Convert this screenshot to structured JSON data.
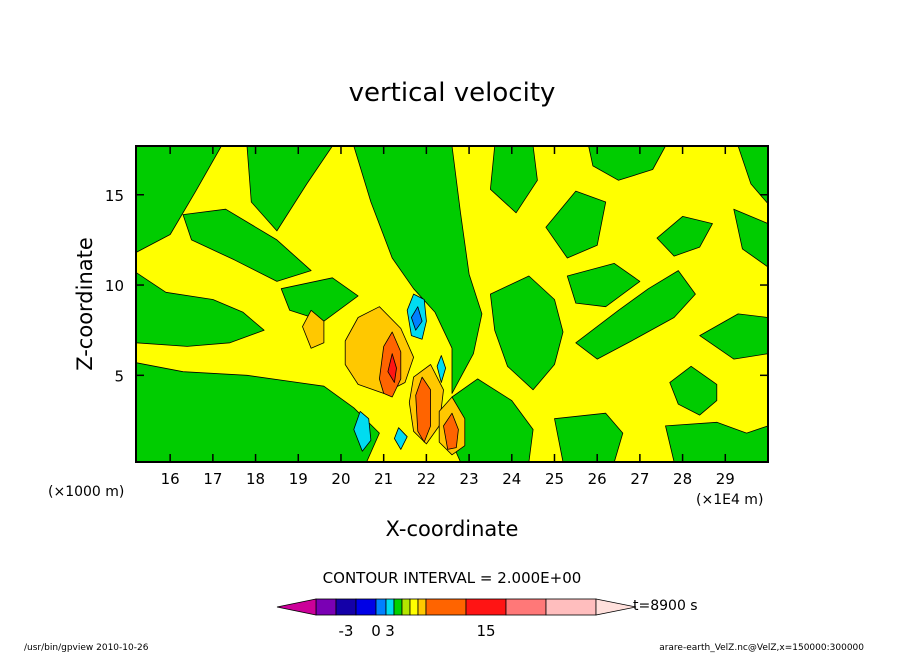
{
  "chart_data": {
    "type": "heatmap",
    "title": "vertical velocity",
    "xlabel": "X-coordinate",
    "ylabel": "Z-coordinate",
    "x_unit_left": "(×1000 m)",
    "x_unit_right": "(×1E4 m)",
    "xlim": [
      15.2,
      30.0
    ],
    "ylim": [
      0.2,
      17.7
    ],
    "x_ticks": [
      16,
      17,
      18,
      19,
      20,
      21,
      22,
      23,
      24,
      25,
      26,
      27,
      28,
      29
    ],
    "y_ticks": [
      5,
      10,
      15
    ],
    "contour_interval_label": "CONTOUR INTERVAL = 2.000E+00",
    "colorbar": {
      "labels": [
        {
          "value": "-3",
          "index": 1.5
        },
        {
          "value": "0",
          "index": 3
        },
        {
          "value": "3",
          "index": 4.5
        },
        {
          "value": "15",
          "index": 10.5
        }
      ],
      "colors": [
        "#cc0099",
        "#7a00b4",
        "#1400a8",
        "#0000e6",
        "#0080ff",
        "#00dcf0",
        "#00d200",
        "#b4e600",
        "#ffff00",
        "#ffc800",
        "#ff6400",
        "#ff1414",
        "#ff7878",
        "#ffbebe",
        "#ffe0dc"
      ],
      "time_label": "t=8900 s"
    },
    "background_regions": [
      {
        "color": "#ffff00",
        "kind": "rect",
        "x0": 15.2,
        "x1": 30.0,
        "y0": 0.2,
        "y1": 17.7
      }
    ],
    "regions": [
      {
        "color": "#00cc00",
        "points": [
          [
            15.2,
            17.7
          ],
          [
            17.2,
            17.7
          ],
          [
            16.6,
            15.2
          ],
          [
            16.0,
            12.8
          ],
          [
            15.2,
            11.8
          ]
        ]
      },
      {
        "color": "#00cc00",
        "points": [
          [
            17.8,
            17.7
          ],
          [
            19.8,
            17.7
          ],
          [
            19.2,
            15.6
          ],
          [
            18.5,
            13.0
          ],
          [
            17.9,
            14.6
          ]
        ]
      },
      {
        "color": "#00cc00",
        "points": [
          [
            20.3,
            17.7
          ],
          [
            22.6,
            17.7
          ],
          [
            22.8,
            14.0
          ],
          [
            23.0,
            10.6
          ],
          [
            23.3,
            8.4
          ],
          [
            23.1,
            6.2
          ],
          [
            22.6,
            4.0
          ],
          [
            22.6,
            6.5
          ],
          [
            22.2,
            8.5
          ],
          [
            21.7,
            9.8
          ],
          [
            21.2,
            11.5
          ],
          [
            20.7,
            14.6
          ]
        ]
      },
      {
        "color": "#00cc00",
        "points": [
          [
            23.6,
            17.7
          ],
          [
            24.5,
            17.7
          ],
          [
            24.6,
            15.8
          ],
          [
            24.1,
            14.0
          ],
          [
            23.5,
            15.3
          ]
        ]
      },
      {
        "color": "#00cc00",
        "points": [
          [
            25.8,
            17.7
          ],
          [
            27.6,
            17.7
          ],
          [
            27.3,
            16.4
          ],
          [
            26.5,
            15.8
          ],
          [
            25.9,
            16.6
          ]
        ]
      },
      {
        "color": "#00cc00",
        "points": [
          [
            29.3,
            17.7
          ],
          [
            30.0,
            17.7
          ],
          [
            30.0,
            14.5
          ],
          [
            29.6,
            15.6
          ]
        ]
      },
      {
        "color": "#00cc00",
        "points": [
          [
            15.2,
            10.7
          ],
          [
            15.9,
            9.6
          ],
          [
            17.0,
            9.2
          ],
          [
            17.7,
            8.5
          ],
          [
            18.2,
            7.5
          ],
          [
            17.4,
            6.8
          ],
          [
            16.4,
            6.6
          ],
          [
            15.2,
            6.8
          ]
        ]
      },
      {
        "color": "#00cc00",
        "points": [
          [
            16.3,
            13.9
          ],
          [
            17.3,
            14.2
          ],
          [
            18.5,
            12.5
          ],
          [
            19.3,
            10.8
          ],
          [
            18.5,
            10.2
          ],
          [
            17.5,
            11.4
          ],
          [
            16.5,
            12.5
          ]
        ]
      },
      {
        "color": "#00cc00",
        "points": [
          [
            18.6,
            9.8
          ],
          [
            19.8,
            10.4
          ],
          [
            20.4,
            9.4
          ],
          [
            19.6,
            8.0
          ],
          [
            18.8,
            8.6
          ]
        ]
      },
      {
        "color": "#00cc00",
        "points": [
          [
            15.2,
            5.7
          ],
          [
            16.3,
            5.2
          ],
          [
            17.8,
            5.0
          ],
          [
            19.6,
            4.4
          ],
          [
            20.3,
            3.2
          ],
          [
            20.9,
            1.8
          ],
          [
            20.6,
            0.2
          ],
          [
            15.2,
            0.2
          ]
        ]
      },
      {
        "color": "#00cc00",
        "points": [
          [
            23.5,
            9.5
          ],
          [
            24.4,
            10.5
          ],
          [
            25.0,
            9.2
          ],
          [
            25.2,
            7.4
          ],
          [
            25.0,
            5.6
          ],
          [
            24.5,
            4.2
          ],
          [
            23.9,
            5.5
          ],
          [
            23.6,
            7.5
          ]
        ]
      },
      {
        "color": "#00cc00",
        "points": [
          [
            22.6,
            3.8
          ],
          [
            23.2,
            4.8
          ],
          [
            24.0,
            3.6
          ],
          [
            24.5,
            2.0
          ],
          [
            24.4,
            0.2
          ],
          [
            22.8,
            0.2
          ],
          [
            22.5,
            1.8
          ]
        ]
      },
      {
        "color": "#00cc00",
        "points": [
          [
            24.8,
            13.2
          ],
          [
            25.5,
            15.2
          ],
          [
            26.2,
            14.6
          ],
          [
            26.0,
            12.2
          ],
          [
            25.3,
            11.5
          ]
        ]
      },
      {
        "color": "#00cc00",
        "points": [
          [
            25.3,
            10.5
          ],
          [
            26.4,
            11.2
          ],
          [
            27.0,
            10.2
          ],
          [
            26.2,
            8.8
          ],
          [
            25.5,
            9.0
          ]
        ]
      },
      {
        "color": "#00cc00",
        "points": [
          [
            25.5,
            6.8
          ],
          [
            26.5,
            8.6
          ],
          [
            27.2,
            9.8
          ],
          [
            27.9,
            10.8
          ],
          [
            28.3,
            9.5
          ],
          [
            27.8,
            8.2
          ],
          [
            26.8,
            6.9
          ],
          [
            26.0,
            5.9
          ]
        ]
      },
      {
        "color": "#00cc00",
        "points": [
          [
            27.4,
            12.6
          ],
          [
            28.0,
            13.8
          ],
          [
            28.7,
            13.4
          ],
          [
            28.4,
            12.1
          ],
          [
            27.8,
            11.6
          ]
        ]
      },
      {
        "color": "#00cc00",
        "points": [
          [
            28.4,
            7.2
          ],
          [
            29.3,
            8.4
          ],
          [
            30.0,
            8.2
          ],
          [
            30.0,
            6.2
          ],
          [
            29.2,
            5.9
          ]
        ]
      },
      {
        "color": "#00cc00",
        "points": [
          [
            27.7,
            4.6
          ],
          [
            28.2,
            5.5
          ],
          [
            28.8,
            4.5
          ],
          [
            28.8,
            3.6
          ],
          [
            28.4,
            2.8
          ],
          [
            27.9,
            3.4
          ]
        ]
      },
      {
        "color": "#00cc00",
        "points": [
          [
            27.6,
            2.2
          ],
          [
            28.8,
            2.4
          ],
          [
            29.5,
            1.8
          ],
          [
            30.0,
            2.2
          ],
          [
            30.0,
            0.2
          ],
          [
            27.8,
            0.2
          ]
        ]
      },
      {
        "color": "#00cc00",
        "points": [
          [
            25.0,
            2.6
          ],
          [
            26.2,
            2.9
          ],
          [
            26.6,
            1.8
          ],
          [
            26.4,
            0.2
          ],
          [
            25.2,
            0.2
          ]
        ]
      },
      {
        "color": "#00cc00",
        "points": [
          [
            29.2,
            14.2
          ],
          [
            30.0,
            13.4
          ],
          [
            30.0,
            11.0
          ],
          [
            29.4,
            12.0
          ]
        ]
      },
      {
        "color": "#ffc800",
        "points": [
          [
            20.1,
            6.9
          ],
          [
            20.4,
            8.2
          ],
          [
            20.9,
            8.8
          ],
          [
            21.4,
            7.6
          ],
          [
            21.7,
            6.0
          ],
          [
            21.5,
            4.6
          ],
          [
            21.0,
            4.0
          ],
          [
            20.4,
            4.5
          ],
          [
            20.1,
            5.6
          ]
        ]
      },
      {
        "color": "#ffc800",
        "points": [
          [
            19.1,
            7.7
          ],
          [
            19.3,
            8.6
          ],
          [
            19.6,
            8.0
          ],
          [
            19.6,
            6.8
          ],
          [
            19.3,
            6.5
          ]
        ]
      },
      {
        "color": "#ffc800",
        "points": [
          [
            21.7,
            4.9
          ],
          [
            22.1,
            5.6
          ],
          [
            22.4,
            4.2
          ],
          [
            22.3,
            2.2
          ],
          [
            22.0,
            1.2
          ],
          [
            21.7,
            1.9
          ],
          [
            21.6,
            3.5
          ]
        ]
      },
      {
        "color": "#ffc800",
        "points": [
          [
            22.3,
            3.0
          ],
          [
            22.6,
            3.8
          ],
          [
            22.9,
            2.6
          ],
          [
            22.9,
            1.1
          ],
          [
            22.6,
            0.6
          ],
          [
            22.3,
            1.3
          ]
        ]
      },
      {
        "color": "#ff6400",
        "points": [
          [
            20.9,
            4.8
          ],
          [
            21.0,
            6.6
          ],
          [
            21.2,
            7.4
          ],
          [
            21.4,
            6.3
          ],
          [
            21.4,
            4.8
          ],
          [
            21.2,
            3.8
          ],
          [
            21.0,
            4.0
          ]
        ]
      },
      {
        "color": "#ff6400",
        "points": [
          [
            21.75,
            3.9
          ],
          [
            21.9,
            4.9
          ],
          [
            22.1,
            4.2
          ],
          [
            22.1,
            2.2
          ],
          [
            21.95,
            1.3
          ],
          [
            21.8,
            1.9
          ]
        ]
      },
      {
        "color": "#ff6400",
        "points": [
          [
            22.4,
            2.2
          ],
          [
            22.6,
            2.9
          ],
          [
            22.75,
            2.0
          ],
          [
            22.7,
            1.0
          ],
          [
            22.5,
            0.9
          ]
        ]
      },
      {
        "color": "#ff1414",
        "points": [
          [
            21.1,
            5.2
          ],
          [
            21.2,
            6.2
          ],
          [
            21.3,
            5.4
          ],
          [
            21.25,
            4.6
          ]
        ]
      },
      {
        "color": "#00dcf0",
        "points": [
          [
            21.55,
            8.6
          ],
          [
            21.7,
            9.5
          ],
          [
            21.95,
            9.2
          ],
          [
            22.0,
            8.0
          ],
          [
            21.9,
            7.0
          ],
          [
            21.65,
            7.2
          ]
        ]
      },
      {
        "color": "#00dcf0",
        "points": [
          [
            20.3,
            2.0
          ],
          [
            20.45,
            3.0
          ],
          [
            20.65,
            2.6
          ],
          [
            20.7,
            1.4
          ],
          [
            20.5,
            0.8
          ]
        ]
      },
      {
        "color": "#00dcf0",
        "points": [
          [
            21.25,
            1.5
          ],
          [
            21.35,
            2.1
          ],
          [
            21.55,
            1.6
          ],
          [
            21.4,
            0.9
          ]
        ]
      },
      {
        "color": "#00dcf0",
        "points": [
          [
            22.25,
            5.5
          ],
          [
            22.35,
            6.1
          ],
          [
            22.45,
            5.4
          ],
          [
            22.35,
            4.6
          ]
        ]
      },
      {
        "color": "#0080ff",
        "points": [
          [
            21.65,
            8.2
          ],
          [
            21.8,
            8.8
          ],
          [
            21.9,
            8.0
          ],
          [
            21.75,
            7.5
          ]
        ]
      }
    ]
  },
  "footer": {
    "left": "/usr/bin/gpview   2010-10-26",
    "right": "arare-earth_VelZ.nc@VelZ,x=150000:300000"
  }
}
